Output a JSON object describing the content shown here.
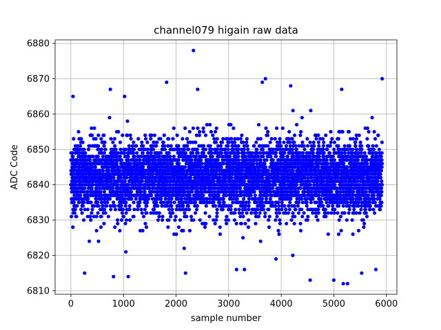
{
  "chart_data": {
    "type": "scatter",
    "title": "channel079 higain raw data",
    "xlabel": "sample number",
    "ylabel": "ADC Code",
    "xlim": [
      -300,
      6200
    ],
    "ylim": [
      6809,
      6881
    ],
    "xticks": [
      0,
      1000,
      2000,
      3000,
      4000,
      5000,
      6000
    ],
    "yticks": [
      6810,
      6820,
      6830,
      6840,
      6850,
      6860,
      6870,
      6880
    ],
    "grid": true,
    "marker_color": "#0000ff",
    "n_samples": 5920,
    "typical_range": [
      6833,
      6852
    ],
    "mean": 6842,
    "sample_points": [
      {
        "x": 2330,
        "y": 6878
      },
      {
        "x": 5920,
        "y": 6870
      },
      {
        "x": 3640,
        "y": 6869
      },
      {
        "x": 3700,
        "y": 6870
      },
      {
        "x": 1820,
        "y": 6869
      },
      {
        "x": 750,
        "y": 6867
      },
      {
        "x": 2410,
        "y": 6867
      },
      {
        "x": 4180,
        "y": 6868
      },
      {
        "x": 5150,
        "y": 6867
      },
      {
        "x": 40,
        "y": 6865
      },
      {
        "x": 1020,
        "y": 6865
      },
      {
        "x": 260,
        "y": 6815
      },
      {
        "x": 810,
        "y": 6814
      },
      {
        "x": 1090,
        "y": 6814
      },
      {
        "x": 2180,
        "y": 6815
      },
      {
        "x": 3150,
        "y": 6816
      },
      {
        "x": 3300,
        "y": 6816
      },
      {
        "x": 4550,
        "y": 6813
      },
      {
        "x": 5000,
        "y": 6813
      },
      {
        "x": 5180,
        "y": 6812
      },
      {
        "x": 5260,
        "y": 6812
      },
      {
        "x": 5530,
        "y": 6815
      },
      {
        "x": 5800,
        "y": 6816
      },
      {
        "x": 3900,
        "y": 6819
      },
      {
        "x": 4220,
        "y": 6820
      }
    ]
  }
}
